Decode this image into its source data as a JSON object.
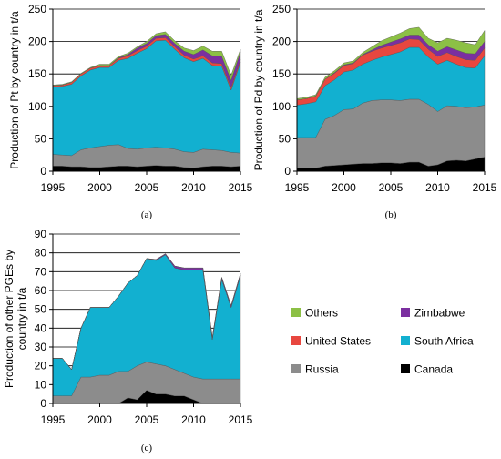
{
  "colors": {
    "Canada": "#000000",
    "Russia": "#8c8c8c",
    "South Africa": "#12b0d0",
    "United States": "#e8473f",
    "Zimbabwe": "#7b2fa0",
    "Others": "#8cc045"
  },
  "legend": {
    "items": [
      {
        "key": "Others",
        "label": "Others"
      },
      {
        "key": "Zimbabwe",
        "label": "Zimbabwe"
      },
      {
        "key": "United States",
        "label": "United States"
      },
      {
        "key": "South Africa",
        "label": "South Africa"
      },
      {
        "key": "Russia",
        "label": "Russia"
      },
      {
        "key": "Canada",
        "label": "Canada"
      }
    ]
  },
  "chart_data": [
    {
      "type": "area",
      "panel_label": "(a)",
      "ylabel": "Production of Pt by country in t/a",
      "ylim": [
        0,
        250
      ],
      "yticks": [
        0,
        50,
        100,
        150,
        200,
        250
      ],
      "xlim": [
        1995,
        2015
      ],
      "xticks": [
        1995,
        2000,
        2005,
        2010,
        2015
      ],
      "grid": true,
      "stacked": true,
      "x": [
        1995,
        1996,
        1997,
        1998,
        1999,
        2000,
        2001,
        2002,
        2003,
        2004,
        2005,
        2006,
        2007,
        2008,
        2009,
        2010,
        2011,
        2012,
        2013,
        2014,
        2015
      ],
      "series": [
        {
          "name": "Canada",
          "values": [
            8,
            8,
            7,
            7,
            6,
            6,
            7,
            8,
            8,
            7,
            8,
            9,
            8,
            8,
            6,
            5,
            7,
            8,
            8,
            7,
            8
          ]
        },
        {
          "name": "Russia",
          "values": [
            18,
            17,
            17,
            26,
            30,
            32,
            33,
            33,
            27,
            27,
            28,
            28,
            28,
            26,
            24,
            24,
            27,
            25,
            24,
            22,
            20
          ]
        },
        {
          "name": "South Africa",
          "values": [
            104,
            106,
            110,
            114,
            120,
            122,
            120,
            130,
            139,
            148,
            153,
            164,
            166,
            154,
            145,
            140,
            140,
            130,
            130,
            96,
            140
          ]
        },
        {
          "name": "United States",
          "values": [
            2,
            2,
            3,
            3,
            3,
            3,
            3,
            3,
            4,
            4,
            4,
            4,
            4,
            4,
            4,
            4,
            4,
            4,
            4,
            4,
            4
          ]
        },
        {
          "name": "Zimbabwe",
          "values": [
            0,
            0,
            0,
            0,
            0,
            0,
            0,
            1,
            2,
            4,
            4,
            4,
            5,
            5,
            6,
            7,
            9,
            11,
            11,
            11,
            12
          ]
        },
        {
          "name": "Others",
          "values": [
            1,
            1,
            1,
            1,
            1,
            2,
            2,
            2,
            2,
            2,
            3,
            3,
            4,
            4,
            5,
            6,
            6,
            7,
            8,
            8,
            4
          ]
        }
      ]
    },
    {
      "type": "area",
      "panel_label": "(b)",
      "ylabel": "Production of Pd by country in t/a",
      "ylim": [
        0,
        250
      ],
      "yticks": [
        0,
        50,
        100,
        150,
        200,
        250
      ],
      "xlim": [
        1995,
        2015
      ],
      "xticks": [
        1995,
        2000,
        2005,
        2010,
        2015
      ],
      "grid": true,
      "stacked": true,
      "x": [
        1995,
        1996,
        1997,
        1998,
        1999,
        2000,
        2001,
        2002,
        2003,
        2004,
        2005,
        2006,
        2007,
        2008,
        2009,
        2010,
        2011,
        2012,
        2013,
        2014,
        2015
      ],
      "series": [
        {
          "name": "Canada",
          "values": [
            5,
            5,
            5,
            8,
            9,
            10,
            11,
            12,
            12,
            13,
            13,
            12,
            14,
            14,
            8,
            10,
            16,
            17,
            16,
            19,
            22
          ]
        },
        {
          "name": "Russia",
          "values": [
            47,
            47,
            47,
            72,
            77,
            85,
            85,
            93,
            97,
            97,
            97,
            97,
            97,
            97,
            95,
            82,
            85,
            83,
            82,
            80,
            80
          ]
        },
        {
          "name": "South Africa",
          "values": [
            50,
            52,
            55,
            52,
            55,
            58,
            60,
            60,
            62,
            66,
            70,
            75,
            80,
            80,
            73,
            73,
            70,
            65,
            62,
            60,
            76
          ]
        },
        {
          "name": "United States",
          "values": [
            8,
            8,
            9,
            10,
            10,
            10,
            10,
            14,
            14,
            14,
            14,
            14,
            13,
            12,
            12,
            12,
            12,
            12,
            12,
            12,
            12
          ]
        },
        {
          "name": "Zimbabwe",
          "values": [
            0,
            0,
            0,
            0,
            1,
            1,
            1,
            1,
            2,
            4,
            5,
            6,
            6,
            7,
            7,
            8,
            9,
            10,
            10,
            10,
            10
          ]
        },
        {
          "name": "Others",
          "values": [
            2,
            2,
            2,
            3,
            3,
            3,
            3,
            3,
            5,
            7,
            8,
            9,
            10,
            12,
            10,
            13,
            13,
            15,
            16,
            14,
            17
          ]
        }
      ]
    },
    {
      "type": "area",
      "panel_label": "(c)",
      "ylabel": "Production of other PGEs by country in t/a",
      "ylim": [
        0,
        90
      ],
      "yticks": [
        0,
        10,
        20,
        30,
        40,
        50,
        60,
        70,
        80,
        90
      ],
      "xlim": [
        1995,
        2015
      ],
      "xticks": [
        1995,
        2000,
        2005,
        2010,
        2015
      ],
      "grid": true,
      "stacked": true,
      "x": [
        1995,
        1996,
        1997,
        1998,
        1999,
        2000,
        2001,
        2002,
        2003,
        2004,
        2005,
        2006,
        2007,
        2008,
        2009,
        2010,
        2011,
        2012,
        2013,
        2014,
        2015
      ],
      "series": [
        {
          "name": "Canada",
          "values": [
            0,
            0,
            0,
            0,
            0,
            0,
            0,
            0,
            3,
            2,
            7,
            5,
            5,
            4,
            4,
            2,
            0,
            0,
            0,
            0,
            0
          ]
        },
        {
          "name": "Russia",
          "values": [
            4,
            4,
            4,
            14,
            14,
            15,
            15,
            17,
            14,
            18,
            15,
            16,
            15,
            14,
            12,
            12,
            13,
            13,
            13,
            13,
            13
          ]
        },
        {
          "name": "South Africa",
          "values": [
            20,
            20,
            14,
            26,
            37,
            36,
            36,
            40,
            47,
            48,
            55,
            55,
            59,
            54,
            55,
            57,
            58,
            21,
            53,
            38,
            55
          ]
        },
        {
          "name": "United States",
          "values": [
            0,
            0,
            0,
            0,
            0,
            0,
            0,
            0,
            0,
            0,
            0,
            0,
            0,
            0,
            0,
            0,
            0,
            0,
            0,
            0,
            0
          ]
        },
        {
          "name": "Zimbabwe",
          "values": [
            0,
            0,
            0,
            0,
            0,
            0,
            0,
            0,
            0,
            0,
            0,
            0.5,
            0.5,
            1,
            1,
            1,
            1,
            1,
            1,
            1,
            1
          ]
        },
        {
          "name": "Others",
          "values": [
            0,
            0,
            0,
            0,
            0,
            0,
            0,
            0,
            0,
            0,
            0,
            0,
            0,
            0,
            0,
            0,
            0,
            0,
            0,
            0,
            0
          ]
        }
      ]
    }
  ]
}
